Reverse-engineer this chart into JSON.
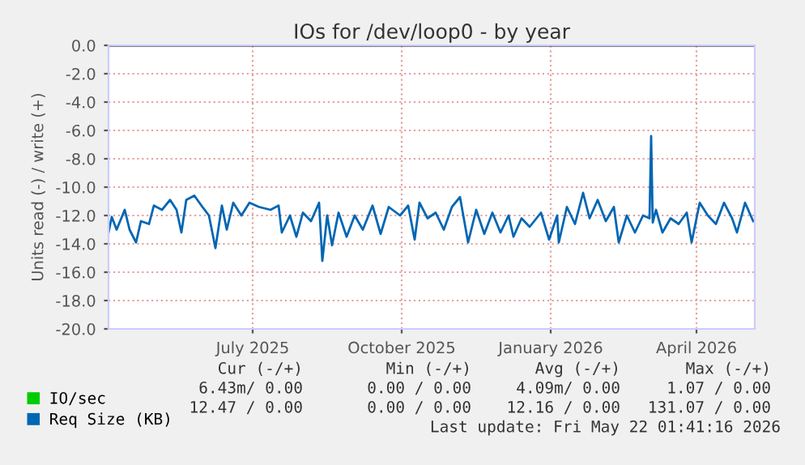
{
  "chart_data": {
    "type": "line",
    "title": "IOs for /dev/loop0 - by year",
    "ylabel": "Units read (-) / write (+)",
    "xlim": [
      "2025-04-03",
      "2026-05-07"
    ],
    "xticks": [
      {
        "value": "2025-07-01",
        "label": "July 2025"
      },
      {
        "value": "2025-10-01",
        "label": "October 2025"
      },
      {
        "value": "2026-01-01",
        "label": "January 2026"
      },
      {
        "value": "2026-04-01",
        "label": "April 2026"
      }
    ],
    "ylim": [
      -20,
      0
    ],
    "yticks": [
      {
        "value": 0,
        "label": "0.0"
      },
      {
        "value": -2,
        "label": "-2.0"
      },
      {
        "value": -4,
        "label": "-4.0"
      },
      {
        "value": -6,
        "label": "-6.0"
      },
      {
        "value": -8,
        "label": "-8.0"
      },
      {
        "value": -10,
        "label": "-10.0"
      },
      {
        "value": -12,
        "label": "-12.0"
      },
      {
        "value": -14,
        "label": "-14.0"
      },
      {
        "value": -16,
        "label": "-16.0"
      },
      {
        "value": -18,
        "label": "-18.0"
      },
      {
        "value": -20,
        "label": "-20.0"
      }
    ],
    "grid": true,
    "legend": "bottom",
    "marker": "none",
    "line_style": "solid",
    "ref_lines": [
      {
        "axis": "y",
        "value": 0,
        "color": "#000000"
      }
    ],
    "series": [
      {
        "name": "IO/sec",
        "color": "#00cc00"
      },
      {
        "name": "Req Size (KB)",
        "color": "#0066b3",
        "x": [
          "2025-04-03",
          "2025-04-05",
          "2025-04-08",
          "2025-04-13",
          "2025-04-16",
          "2025-04-20",
          "2025-04-23",
          "2025-04-28",
          "2025-05-01",
          "2025-05-06",
          "2025-05-11",
          "2025-05-15",
          "2025-05-18",
          "2025-05-21",
          "2025-05-26",
          "2025-05-31",
          "2025-06-04",
          "2025-06-08",
          "2025-06-12",
          "2025-06-15",
          "2025-06-19",
          "2025-06-24",
          "2025-06-29",
          "2025-07-05",
          "2025-07-12",
          "2025-07-17",
          "2025-07-19",
          "2025-07-24",
          "2025-07-28",
          "2025-08-01",
          "2025-08-06",
          "2025-08-11",
          "2025-08-13",
          "2025-08-16",
          "2025-08-19",
          "2025-08-23",
          "2025-08-28",
          "2025-09-02",
          "2025-09-07",
          "2025-09-13",
          "2025-09-18",
          "2025-09-23",
          "2025-09-30",
          "2025-10-05",
          "2025-10-09",
          "2025-10-12",
          "2025-10-17",
          "2025-10-22",
          "2025-10-27",
          "2025-11-01",
          "2025-11-06",
          "2025-11-11",
          "2025-11-16",
          "2025-11-21",
          "2025-11-26",
          "2025-12-01",
          "2025-12-06",
          "2025-12-09",
          "2025-12-14",
          "2025-12-19",
          "2025-12-26",
          "2025-12-31",
          "2026-01-05",
          "2026-01-06",
          "2026-01-11",
          "2026-01-16",
          "2026-01-21",
          "2026-01-25",
          "2026-01-30",
          "2026-02-04",
          "2026-02-09",
          "2026-02-12",
          "2026-02-17",
          "2026-02-22",
          "2026-02-27",
          "2026-03-03",
          "2026-03-04",
          "2026-03-05",
          "2026-03-07",
          "2026-03-11",
          "2026-03-16",
          "2026-03-21",
          "2026-03-26",
          "2026-03-29",
          "2026-04-03",
          "2026-04-08",
          "2026-04-13",
          "2026-04-18",
          "2026-04-23",
          "2026-04-26",
          "2026-05-01",
          "2026-05-06"
        ],
        "values": [
          -13.2,
          -12.1,
          -13.0,
          -11.6,
          -13.0,
          -13.9,
          -12.4,
          -12.6,
          -11.3,
          -11.6,
          -10.9,
          -11.6,
          -13.2,
          -10.9,
          -10.6,
          -11.4,
          -12.0,
          -14.3,
          -11.3,
          -13.0,
          -11.1,
          -12.0,
          -11.1,
          -11.4,
          -11.6,
          -11.3,
          -13.2,
          -12.0,
          -13.5,
          -11.8,
          -12.4,
          -11.1,
          -15.2,
          -12.0,
          -14.1,
          -11.8,
          -13.5,
          -12.0,
          -13.0,
          -11.3,
          -13.3,
          -11.4,
          -12.0,
          -11.3,
          -13.7,
          -11.1,
          -12.2,
          -11.8,
          -13.0,
          -11.4,
          -10.7,
          -13.9,
          -11.6,
          -13.3,
          -11.8,
          -13.2,
          -12.0,
          -13.5,
          -12.2,
          -12.8,
          -11.8,
          -13.7,
          -12.0,
          -13.9,
          -11.4,
          -12.6,
          -10.4,
          -12.2,
          -10.9,
          -12.4,
          -11.4,
          -13.9,
          -12.0,
          -13.2,
          -12.0,
          -12.2,
          -6.4,
          -12.5,
          -11.6,
          -13.2,
          -12.2,
          -12.6,
          -11.8,
          -13.9,
          -11.1,
          -12.0,
          -12.6,
          -11.1,
          -12.2,
          -13.2,
          -11.1,
          -12.4
        ]
      }
    ],
    "annotations": [
      "Cur (-/+)",
      "Min (-/+)",
      "Avg (-/+)",
      "Max (-/+)",
      "6.43m/ 0.00",
      "0.00 / 0.00",
      "4.09m/ 0.00",
      "1.07 / 0.00",
      "12.47 / 0.00",
      "0.00 / 0.00",
      "12.16 / 0.00",
      "131.07 / 0.00",
      "Last update: Fri May 22 01:41:16 2026"
    ]
  }
}
